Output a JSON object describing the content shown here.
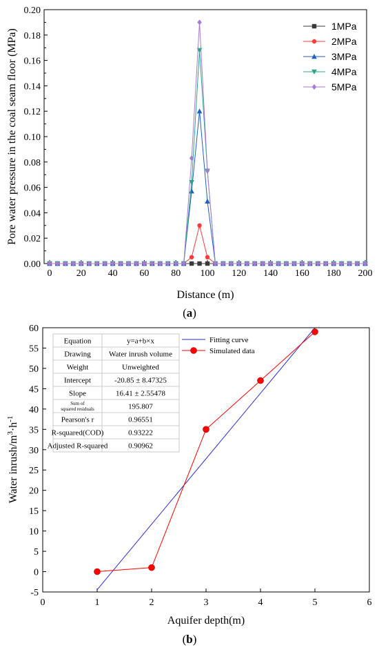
{
  "colors": {
    "s1": "#3a3a3a",
    "s2": "#ff3b3b",
    "s3": "#1f5fbf",
    "s4": "#2aa38a",
    "s5": "#a77ad6",
    "fit": "#2a2ad6",
    "sim": "#ff0000"
  },
  "panel_labels": {
    "a": "a",
    "b": "b"
  },
  "chart_data": [
    {
      "type": "line",
      "xlabel": "Distance (m)",
      "ylabel": "Pore water pressure in the coal seam floor (MPa)",
      "xlim": [
        0,
        200
      ],
      "ylim": [
        0,
        0.2
      ],
      "xticks": [
        "0",
        "20",
        "40",
        "60",
        "80",
        "100",
        "120",
        "140",
        "160",
        "180",
        "200"
      ],
      "yticks": [
        "0.00",
        "0.02",
        "0.04",
        "0.06",
        "0.08",
        "0.10",
        "0.12",
        "0.14",
        "0.16",
        "0.18",
        "0.20"
      ],
      "legend_position": "top-right",
      "x": [
        0,
        5,
        10,
        15,
        20,
        25,
        30,
        35,
        40,
        45,
        50,
        55,
        60,
        65,
        70,
        75,
        80,
        85,
        90,
        95,
        100,
        105,
        110,
        115,
        120,
        125,
        130,
        135,
        140,
        145,
        150,
        155,
        160,
        165,
        170,
        175,
        180,
        185,
        190,
        195,
        200
      ],
      "series": [
        {
          "name": "1MPa",
          "marker": "square",
          "values": [
            0,
            0,
            0,
            0,
            0,
            0,
            0,
            0,
            0,
            0,
            0,
            0,
            0,
            0,
            0,
            0,
            0,
            0,
            0,
            0,
            0,
            0,
            0,
            0,
            0,
            0,
            0,
            0,
            0,
            0,
            0,
            0,
            0,
            0,
            0,
            0,
            0,
            0,
            0,
            0,
            0
          ]
        },
        {
          "name": "2MPa",
          "marker": "circle",
          "values": [
            0,
            0,
            0,
            0,
            0,
            0,
            0,
            0,
            0,
            0,
            0,
            0,
            0,
            0,
            0,
            0,
            0,
            0,
            0.005,
            0.03,
            0.005,
            0,
            0,
            0,
            0,
            0,
            0,
            0,
            0,
            0,
            0,
            0,
            0,
            0,
            0,
            0,
            0,
            0,
            0,
            0,
            0
          ]
        },
        {
          "name": "3MPa",
          "marker": "triangle-up",
          "values": [
            0,
            0,
            0,
            0,
            0,
            0,
            0,
            0,
            0,
            0,
            0,
            0,
            0,
            0,
            0,
            0,
            0,
            0,
            0.057,
            0.12,
            0.049,
            0,
            0,
            0,
            0,
            0,
            0,
            0,
            0,
            0,
            0,
            0,
            0,
            0,
            0,
            0,
            0,
            0,
            0,
            0,
            0
          ]
        },
        {
          "name": "4MPa",
          "marker": "triangle-down",
          "values": [
            0,
            0,
            0,
            0,
            0,
            0,
            0,
            0,
            0,
            0,
            0,
            0,
            0,
            0,
            0,
            0,
            0,
            0,
            0.064,
            0.168,
            0.073,
            0,
            0,
            0,
            0,
            0,
            0,
            0,
            0,
            0,
            0,
            0,
            0,
            0,
            0,
            0,
            0,
            0,
            0,
            0,
            0
          ]
        },
        {
          "name": "5MPa",
          "marker": "diamond",
          "values": [
            0,
            0,
            0,
            0,
            0,
            0,
            0,
            0,
            0,
            0,
            0,
            0,
            0,
            0,
            0,
            0,
            0,
            0,
            0.083,
            0.19,
            0.073,
            0,
            0,
            0,
            0,
            0,
            0,
            0,
            0,
            0,
            0,
            0,
            0,
            0,
            0,
            0,
            0,
            0,
            0,
            0,
            0
          ]
        }
      ]
    },
    {
      "type": "scatter",
      "xlabel": "Aquifer depth(m)",
      "ylabel_main": "Water inrush/m",
      "ylabel_sup1": "3",
      "ylabel_mid": "·h",
      "ylabel_sup2": "-1",
      "xlim": [
        0,
        6
      ],
      "ylim": [
        -5,
        60
      ],
      "xticks": [
        "0",
        "1",
        "2",
        "3",
        "4",
        "5",
        "6"
      ],
      "yticks": [
        "-5",
        "0",
        "5",
        "10",
        "15",
        "20",
        "25",
        "30",
        "35",
        "40",
        "45",
        "50",
        "55",
        "60"
      ],
      "legend_position": "top-right",
      "series": [
        {
          "name": "Fitting curve",
          "kind": "line",
          "x": [
            1,
            5.0
          ],
          "values": [
            -4.44,
            61.2
          ]
        },
        {
          "name": "Simulated data",
          "kind": "line-marker",
          "x": [
            1,
            2,
            3,
            4,
            5
          ],
          "values": [
            0,
            1,
            35,
            47,
            59
          ]
        }
      ],
      "stats_table": [
        [
          "Equation",
          "y=a+b×x"
        ],
        [
          "Drawing",
          "Water inrush volume"
        ],
        [
          "Weight",
          "Unweighted"
        ],
        [
          "Intercept",
          "-20.85 ± 8.47325"
        ],
        [
          "Slope",
          "16.41 ± 2.55478"
        ],
        [
          "Sum of squared residuals",
          "195.807"
        ],
        [
          "Pearson's r",
          "0.96551"
        ],
        [
          "R-squared(COD)",
          "0.93222"
        ],
        [
          "Adjusted R-squared",
          "0.90962"
        ]
      ]
    }
  ]
}
